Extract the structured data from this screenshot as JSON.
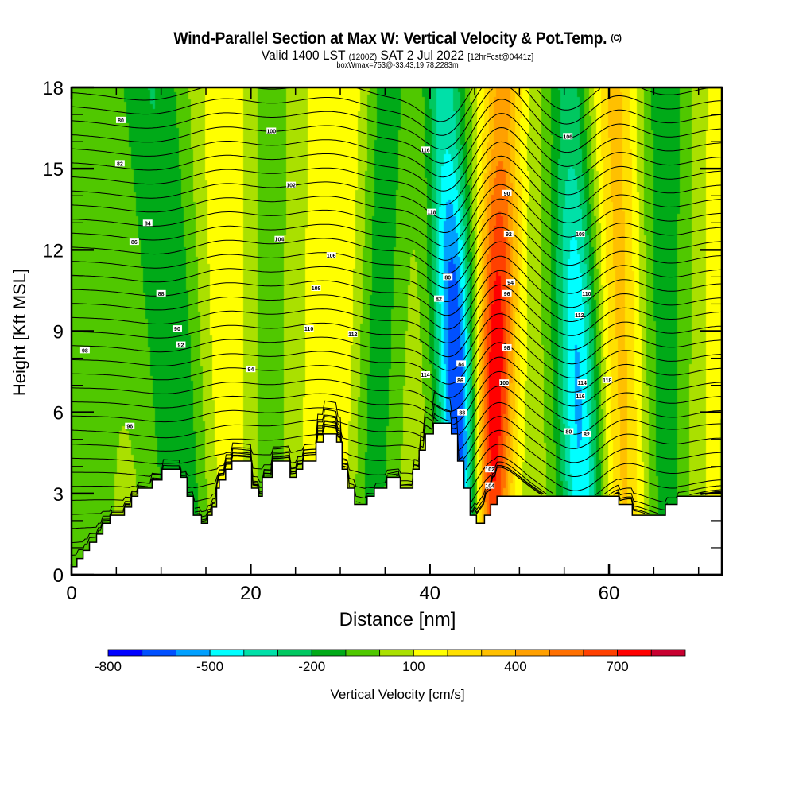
{
  "header": {
    "title": "Wind-Parallel Section at Max W: Vertical Velocity & Pot.Temp.",
    "copyright": "(C)",
    "valid_prefix": "Valid 1400 LST",
    "valid_zulu": "(1200Z)",
    "valid_date": "SAT 2 Jul 2022",
    "forecast": "[12hrFcst@0441z]",
    "boxwmax": "boxWmax=753@-33.43,19.78,2283m"
  },
  "chart_data": {
    "type": "heatmap",
    "title": "Wind-Parallel Section at Max W: Vertical Velocity & Pot.Temp.",
    "xlabel": "Distance [nm]",
    "ylabel": "Height [Kft MSL]",
    "xlim": [
      0,
      72.6
    ],
    "ylim": [
      0,
      18
    ],
    "x_ticks": [
      "0",
      "20",
      "40",
      "60"
    ],
    "x_tick_values": [
      0,
      20,
      40,
      60
    ],
    "x_minor_step": 5,
    "y_ticks": [
      "0",
      "3",
      "6",
      "9",
      "12",
      "15",
      "18"
    ],
    "y_tick_values": [
      0,
      3,
      6,
      9,
      12,
      15,
      18
    ],
    "y_minor_step": 1,
    "colorbar": {
      "label": "Vertical Velocity [cm/s]",
      "tick_labels": [
        "-800",
        "-500",
        "-200",
        "100",
        "400",
        "700"
      ],
      "tick_values": [
        -800,
        -500,
        -200,
        100,
        400,
        700
      ],
      "levels": [
        -800,
        -700,
        -600,
        -500,
        -400,
        -300,
        -200,
        -100,
        0,
        100,
        200,
        300,
        400,
        500,
        600,
        700,
        800,
        900
      ],
      "colors": [
        "#0000ff",
        "#0050ff",
        "#00a0ff",
        "#00ffff",
        "#00e0a8",
        "#00c860",
        "#00aa18",
        "#50c800",
        "#aae000",
        "#ffff00",
        "#ffe000",
        "#ffc000",
        "#ffa000",
        "#ff7000",
        "#ff4000",
        "#ff0000",
        "#c80030"
      ]
    },
    "vertical_velocity_features": [
      {
        "center_nm_at_top": 2,
        "center_nm_at_bottom": 0,
        "width_nm": 5,
        "value": -80
      },
      {
        "center_nm_at_top": 9,
        "center_nm_at_bottom": 13,
        "width_nm": 3.5,
        "value": -230
      },
      {
        "center_nm_at_top": 17,
        "center_nm_at_bottom": 17,
        "width_nm": 3,
        "value": 140
      },
      {
        "center_nm_at_top": 22,
        "center_nm_at_bottom": 22,
        "width_nm": 2.5,
        "value": -90
      },
      {
        "center_nm_at_top": 30,
        "center_nm_at_bottom": 29,
        "width_nm": 4,
        "value": 150
      },
      {
        "center_nm_at_top": 35,
        "center_nm_at_bottom": 33,
        "width_nm": 2.5,
        "value": -230
      },
      {
        "center_nm_at_top": 41.5,
        "center_nm_at_bottom": 43.8,
        "width_nm": 2.2,
        "value": -760
      },
      {
        "center_nm_at_top": 48,
        "center_nm_at_bottom": 46.5,
        "width_nm": 2.2,
        "value": 760
      },
      {
        "center_nm_at_top": 55.5,
        "center_nm_at_bottom": 57,
        "width_nm": 2.4,
        "value": -560
      },
      {
        "center_nm_at_top": 60.5,
        "center_nm_at_bottom": 62,
        "width_nm": 2.6,
        "value": 300
      },
      {
        "center_nm_at_top": 66,
        "center_nm_at_bottom": 66,
        "width_nm": 3,
        "value": -200
      },
      {
        "center_nm_at_top": 71.5,
        "center_nm_at_bottom": 71,
        "width_nm": 2.5,
        "value": 80
      }
    ],
    "terrain_profile": {
      "x_units": "nm",
      "height_units": "kft",
      "steps": [
        [
          0.0,
          0.3
        ],
        [
          0.6,
          0.6
        ],
        [
          1.3,
          0.9
        ],
        [
          2.0,
          1.2
        ],
        [
          2.8,
          1.5
        ],
        [
          3.5,
          1.9
        ],
        [
          4.3,
          2.2
        ],
        [
          5.9,
          2.5
        ],
        [
          6.7,
          2.9
        ],
        [
          7.4,
          3.2
        ],
        [
          9.0,
          3.5
        ],
        [
          10.1,
          3.9
        ],
        [
          12.2,
          3.6
        ],
        [
          12.9,
          2.9
        ],
        [
          13.6,
          2.2
        ],
        [
          14.5,
          1.9
        ],
        [
          15.2,
          2.2
        ],
        [
          15.7,
          2.5
        ],
        [
          16.2,
          3.2
        ],
        [
          16.5,
          3.5
        ],
        [
          17.2,
          3.9
        ],
        [
          17.9,
          4.2
        ],
        [
          20.1,
          3.2
        ],
        [
          20.9,
          2.9
        ],
        [
          21.3,
          3.6
        ],
        [
          22.4,
          4.2
        ],
        [
          24.4,
          3.6
        ],
        [
          25.1,
          3.9
        ],
        [
          25.8,
          4.2
        ],
        [
          27.3,
          4.9
        ],
        [
          28.1,
          5.2
        ],
        [
          29.6,
          4.9
        ],
        [
          30.2,
          3.9
        ],
        [
          30.8,
          3.2
        ],
        [
          31.6,
          2.6
        ],
        [
          33.0,
          2.9
        ],
        [
          33.8,
          3.2
        ],
        [
          35.2,
          3.6
        ],
        [
          36.7,
          3.2
        ],
        [
          38.1,
          3.9
        ],
        [
          38.8,
          4.6
        ],
        [
          39.5,
          5.2
        ],
        [
          40.4,
          5.6
        ],
        [
          42.4,
          5.2
        ],
        [
          43.1,
          4.2
        ],
        [
          43.8,
          3.2
        ],
        [
          44.5,
          2.2
        ],
        [
          45.2,
          1.9
        ],
        [
          46.1,
          2.2
        ],
        [
          46.8,
          2.6
        ],
        [
          47.5,
          2.9
        ],
        [
          61.1,
          2.6
        ],
        [
          62.6,
          2.2
        ],
        [
          66.3,
          2.6
        ],
        [
          67.6,
          2.9
        ],
        [
          72.6,
          2.9
        ]
      ]
    },
    "potential_temperature_contours": {
      "units": "degF",
      "interval": 2,
      "labels": [
        "80",
        "82",
        "84",
        "86",
        "88",
        "90",
        "92",
        "94",
        "96",
        "98",
        "100",
        "102",
        "104",
        "106",
        "108",
        "110",
        "112",
        "114",
        "116",
        "118"
      ]
    }
  }
}
